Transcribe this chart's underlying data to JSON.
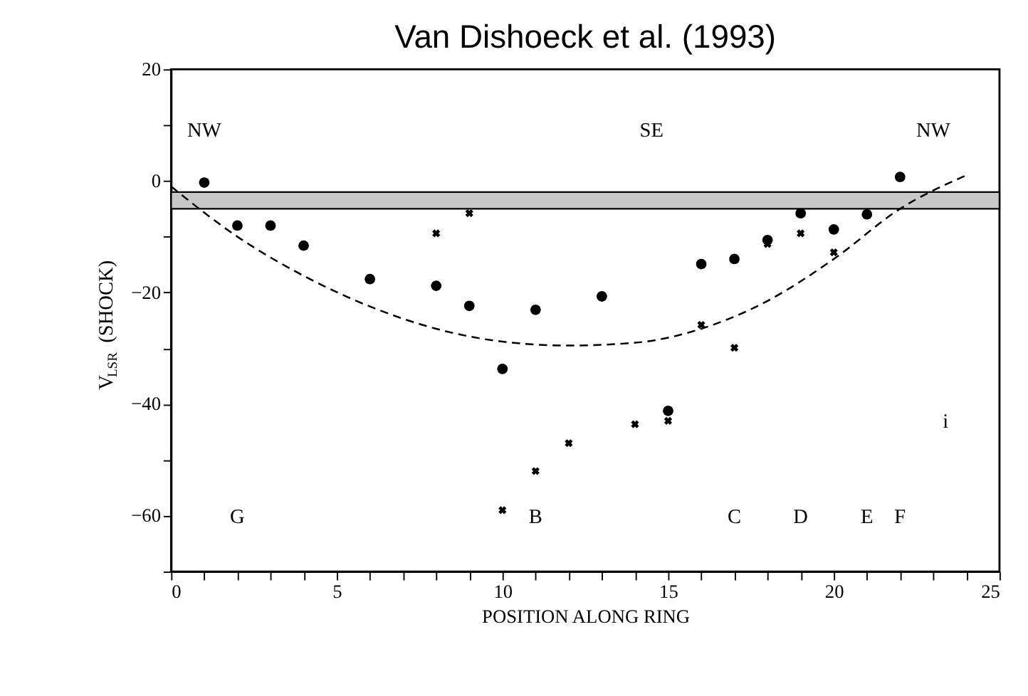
{
  "chart_data": {
    "type": "scatter",
    "title": "Van Dishoeck et al. (1993)",
    "xlabel": "POSITION ALONG RING",
    "ylabel": "V$_{LSR}$ (SHOCK)",
    "xlim": [
      0,
      25
    ],
    "ylim": [
      -70,
      20
    ],
    "xticks": [
      0,
      {
        "value": 1,
        "label": null
      },
      {
        "value": 2,
        "label": null
      },
      {
        "value": 3,
        "label": null
      },
      {
        "value": 4,
        "label": null
      },
      5,
      {
        "value": 6,
        "label": null
      },
      {
        "value": 7,
        "label": null
      },
      {
        "value": 8,
        "label": null
      },
      {
        "value": 9,
        "label": null
      },
      10,
      {
        "value": 11,
        "label": null
      },
      {
        "value": 12,
        "label": null
      },
      {
        "value": 13,
        "label": null
      },
      {
        "value": 14,
        "label": null
      },
      15,
      {
        "value": 16,
        "label": null
      },
      {
        "value": 17,
        "label": null
      },
      {
        "value": 18,
        "label": null
      },
      {
        "value": 19,
        "label": null
      },
      20,
      {
        "value": 21,
        "label": null
      },
      {
        "value": 22,
        "label": null
      },
      {
        "value": 23,
        "label": null
      },
      {
        "value": 24,
        "label": null
      },
      25
    ],
    "yticks": [
      {
        "value": -70,
        "label": null
      },
      -60,
      {
        "value": -50,
        "label": null
      },
      -40,
      {
        "value": -30,
        "label": null
      },
      -20,
      {
        "value": -10,
        "label": null
      },
      0,
      {
        "value": 10,
        "label": null
      },
      20
    ],
    "grid": false,
    "legend": false,
    "series": [
      {
        "marker": "circle",
        "color": "#000000",
        "x": [
          1,
          2,
          3,
          4,
          6,
          8,
          9,
          10,
          11,
          13,
          15,
          16,
          17,
          18,
          19,
          20,
          21,
          22
        ],
        "values": [
          -0.3,
          -8,
          -8,
          -11.6,
          -17.6,
          -18.8,
          -22.4,
          -33.7,
          -23.1,
          -20.7,
          -41.2,
          -14.9,
          -14,
          -10.6,
          -5.8,
          -8.7,
          -6,
          0.7
        ]
      },
      {
        "marker": "cross",
        "color": "#000000",
        "x": [
          8,
          9,
          10,
          11,
          12,
          14,
          15,
          16,
          17,
          18,
          19,
          20
        ],
        "values": [
          -9.4,
          -5.8,
          -59,
          -52,
          -47,
          -43.6,
          -43,
          -25.8,
          -29.9,
          -11.3,
          -9.4,
          -12.8
        ]
      },
      {
        "type": "line",
        "marker": "none",
        "line_style": "dashed",
        "color": "#000000",
        "x": [
          0,
          2,
          4,
          6,
          8,
          10,
          12,
          14,
          16,
          18,
          20,
          22,
          24
        ],
        "values": [
          -1,
          -10,
          -17,
          -22.5,
          -26.5,
          -28.8,
          -29.5,
          -29,
          -26.5,
          -21.5,
          -14,
          -5,
          1
        ]
      }
    ],
    "bands": [
      {
        "axis": "y",
        "from": -5,
        "to": -2,
        "color": "#c8c8c8"
      }
    ],
    "annotations": [
      "NW",
      "SE",
      "NW",
      "G",
      "B",
      "C",
      "D",
      "E",
      "F",
      "i"
    ]
  }
}
